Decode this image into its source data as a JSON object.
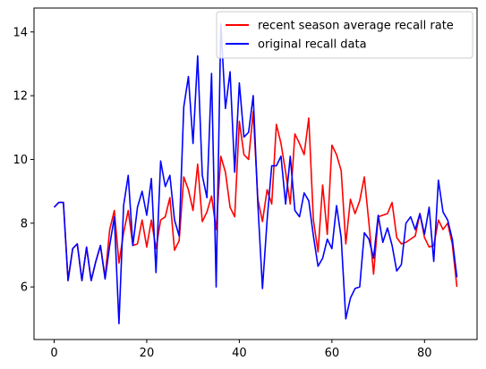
{
  "chart_data": {
    "type": "line",
    "title": "",
    "xlabel": "",
    "ylabel": "",
    "xlim": [
      -4.35,
      91.35
    ],
    "ylim": [
      4.35,
      14.75
    ],
    "xticks": [
      0,
      20,
      40,
      60,
      80
    ],
    "yticks": [
      6,
      8,
      10,
      12,
      14
    ],
    "grid": false,
    "legend_position": "top-right",
    "series": [
      {
        "name": "recent season average recall rate",
        "color": "#ff0000",
        "points": [
          [
            0,
            8.5
          ],
          [
            1,
            8.65
          ],
          [
            2,
            8.65
          ],
          [
            3,
            6.2
          ],
          [
            4,
            7.2
          ],
          [
            5,
            7.35
          ],
          [
            6,
            6.2
          ],
          [
            7,
            7.25
          ],
          [
            8,
            6.2
          ],
          [
            9,
            6.8
          ],
          [
            10,
            7.3
          ],
          [
            11,
            6.3
          ],
          [
            12,
            7.8
          ],
          [
            13,
            8.4
          ],
          [
            14,
            6.75
          ],
          [
            15,
            7.7
          ],
          [
            16,
            8.4
          ],
          [
            17,
            7.3
          ],
          [
            18,
            7.35
          ],
          [
            19,
            8.1
          ],
          [
            20,
            7.25
          ],
          [
            21,
            8.1
          ],
          [
            22,
            7.2
          ],
          [
            23,
            8.1
          ],
          [
            24,
            8.2
          ],
          [
            25,
            8.8
          ],
          [
            26,
            7.15
          ],
          [
            27,
            7.45
          ],
          [
            28,
            9.45
          ],
          [
            29,
            9.05
          ],
          [
            30,
            8.4
          ],
          [
            31,
            9.85
          ],
          [
            32,
            8.05
          ],
          [
            33,
            8.35
          ],
          [
            34,
            8.85
          ],
          [
            35,
            7.8
          ],
          [
            36,
            10.1
          ],
          [
            37,
            9.6
          ],
          [
            38,
            8.5
          ],
          [
            39,
            8.2
          ],
          [
            40,
            11.2
          ],
          [
            41,
            10.15
          ],
          [
            42,
            10.0
          ],
          [
            43,
            11.5
          ],
          [
            44,
            8.75
          ],
          [
            45,
            8.05
          ],
          [
            46,
            9.05
          ],
          [
            47,
            8.6
          ],
          [
            48,
            11.1
          ],
          [
            49,
            10.5
          ],
          [
            50,
            9.6
          ],
          [
            51,
            8.6
          ],
          [
            52,
            10.8
          ],
          [
            53,
            10.5
          ],
          [
            54,
            10.15
          ],
          [
            55,
            11.3
          ],
          [
            56,
            8.1
          ],
          [
            57,
            7.1
          ],
          [
            58,
            9.2
          ],
          [
            59,
            7.65
          ],
          [
            60,
            10.45
          ],
          [
            61,
            10.15
          ],
          [
            62,
            9.65
          ],
          [
            63,
            7.35
          ],
          [
            64,
            8.75
          ],
          [
            65,
            8.3
          ],
          [
            66,
            8.7
          ],
          [
            67,
            9.45
          ],
          [
            68,
            8.0
          ],
          [
            69,
            6.4
          ],
          [
            70,
            8.2
          ],
          [
            71,
            8.25
          ],
          [
            72,
            8.3
          ],
          [
            73,
            8.65
          ],
          [
            74,
            7.55
          ],
          [
            75,
            7.35
          ],
          [
            76,
            7.4
          ],
          [
            77,
            7.5
          ],
          [
            78,
            7.6
          ],
          [
            79,
            8.3
          ],
          [
            80,
            7.55
          ],
          [
            81,
            7.25
          ],
          [
            82,
            7.3
          ],
          [
            83,
            8.1
          ],
          [
            84,
            7.8
          ],
          [
            85,
            8.0
          ],
          [
            86,
            7.35
          ],
          [
            87,
            6.0
          ]
        ]
      },
      {
        "name": "original recall data",
        "color": "#0000ff",
        "points": [
          [
            0,
            8.5
          ],
          [
            1,
            8.65
          ],
          [
            2,
            8.65
          ],
          [
            3,
            6.2
          ],
          [
            4,
            7.2
          ],
          [
            5,
            7.35
          ],
          [
            6,
            6.2
          ],
          [
            7,
            7.25
          ],
          [
            8,
            6.2
          ],
          [
            9,
            6.8
          ],
          [
            10,
            7.3
          ],
          [
            11,
            6.25
          ],
          [
            12,
            7.3
          ],
          [
            13,
            8.2
          ],
          [
            14,
            4.85
          ],
          [
            15,
            8.55
          ],
          [
            16,
            9.5
          ],
          [
            17,
            7.3
          ],
          [
            18,
            8.5
          ],
          [
            19,
            9.0
          ],
          [
            20,
            8.25
          ],
          [
            21,
            9.4
          ],
          [
            22,
            6.45
          ],
          [
            23,
            9.95
          ],
          [
            24,
            9.15
          ],
          [
            25,
            9.5
          ],
          [
            26,
            8.1
          ],
          [
            27,
            7.6
          ],
          [
            28,
            11.65
          ],
          [
            29,
            12.6
          ],
          [
            30,
            10.5
          ],
          [
            31,
            13.25
          ],
          [
            32,
            9.5
          ],
          [
            33,
            8.8
          ],
          [
            34,
            12.7
          ],
          [
            35,
            6.0
          ],
          [
            36,
            14.25
          ],
          [
            37,
            11.6
          ],
          [
            38,
            12.75
          ],
          [
            39,
            9.6
          ],
          [
            40,
            12.4
          ],
          [
            41,
            10.7
          ],
          [
            42,
            10.85
          ],
          [
            43,
            12.0
          ],
          [
            44,
            8.6
          ],
          [
            45,
            5.95
          ],
          [
            46,
            8.1
          ],
          [
            47,
            9.8
          ],
          [
            48,
            9.8
          ],
          [
            49,
            10.1
          ],
          [
            50,
            8.6
          ],
          [
            51,
            10.1
          ],
          [
            52,
            8.4
          ],
          [
            53,
            8.2
          ],
          [
            54,
            8.95
          ],
          [
            55,
            8.7
          ],
          [
            56,
            7.6
          ],
          [
            57,
            6.65
          ],
          [
            58,
            6.9
          ],
          [
            59,
            7.5
          ],
          [
            60,
            7.2
          ],
          [
            61,
            8.55
          ],
          [
            62,
            7.55
          ],
          [
            63,
            5.0
          ],
          [
            64,
            5.65
          ],
          [
            65,
            5.95
          ],
          [
            66,
            6.0
          ],
          [
            67,
            7.7
          ],
          [
            68,
            7.5
          ],
          [
            69,
            6.9
          ],
          [
            70,
            8.25
          ],
          [
            71,
            7.4
          ],
          [
            72,
            7.85
          ],
          [
            73,
            7.3
          ],
          [
            74,
            6.5
          ],
          [
            75,
            6.7
          ],
          [
            76,
            8.0
          ],
          [
            77,
            8.2
          ],
          [
            78,
            7.8
          ],
          [
            79,
            8.3
          ],
          [
            80,
            7.65
          ],
          [
            81,
            8.5
          ],
          [
            82,
            6.8
          ],
          [
            83,
            9.35
          ],
          [
            84,
            8.35
          ],
          [
            85,
            8.1
          ],
          [
            86,
            7.5
          ],
          [
            87,
            6.3
          ]
        ]
      }
    ]
  }
}
